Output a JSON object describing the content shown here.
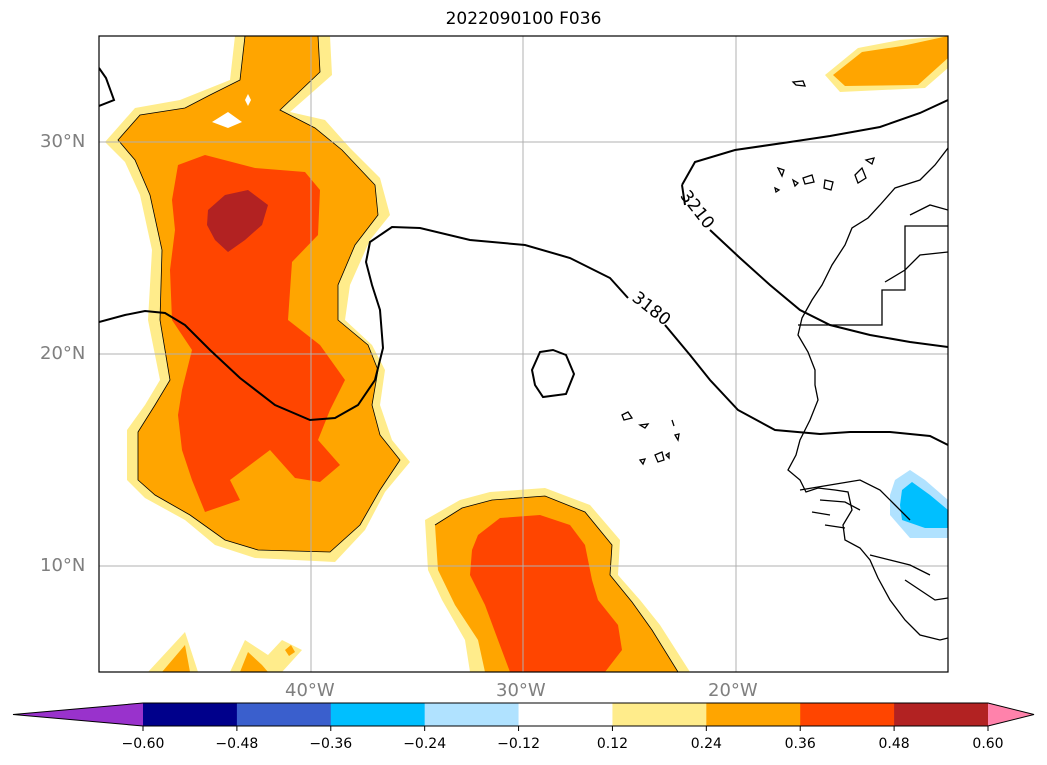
{
  "title": "2022090100 F036",
  "map": {
    "extent_lon": [
      -50,
      -10
    ],
    "extent_lat": [
      5,
      35
    ],
    "lat_labels": [
      "30°N",
      "20°N",
      "10°N"
    ],
    "lon_labels": [
      "40°W",
      "30°W",
      "20°W"
    ],
    "grid": true,
    "contour_labels": [
      "3210",
      "3180"
    ]
  },
  "colorbar": {
    "colors": [
      "#9932cc",
      "#00008b",
      "#3a5fcd",
      "#00bfff",
      "#b0e2ff",
      "#ffffff",
      "#ffec8b",
      "#ffa500",
      "#ff4500",
      "#b22222",
      "#ff82ab"
    ],
    "tick_labels": [
      "−0.60",
      "−0.48",
      "−0.36",
      "−0.24",
      "−0.12",
      "0.12",
      "0.24",
      "0.36",
      "0.48",
      "0.60"
    ],
    "extend": "both"
  }
}
